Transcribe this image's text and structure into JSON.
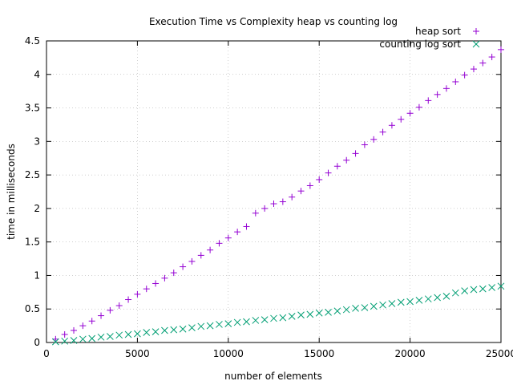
{
  "chart_data": {
    "type": "scatter",
    "title": "Execution Time vs Complexity heap vs counting log",
    "xlabel": "number of elements",
    "ylabel": "time in milliseconds",
    "xlim": [
      0,
      25000
    ],
    "ylim": [
      0,
      4.5
    ],
    "x_ticks": [
      0,
      5000,
      10000,
      15000,
      20000,
      25000
    ],
    "y_ticks": [
      0,
      0.5,
      1,
      1.5,
      2,
      2.5,
      3,
      3.5,
      4,
      4.5
    ],
    "grid": true,
    "legend_position": "top-right",
    "x": [
      500,
      1000,
      1500,
      2000,
      2500,
      3000,
      3500,
      4000,
      4500,
      5000,
      5500,
      6000,
      6500,
      7000,
      7500,
      8000,
      8500,
      9000,
      9500,
      10000,
      10500,
      11000,
      11500,
      12000,
      12500,
      13000,
      13500,
      14000,
      14500,
      15000,
      15500,
      16000,
      16500,
      17000,
      17500,
      18000,
      18500,
      19000,
      19500,
      20000,
      20500,
      21000,
      21500,
      22000,
      22500,
      23000,
      23500,
      24000,
      24500,
      25000
    ],
    "series": [
      {
        "name": "heap sort",
        "marker": "plus",
        "color": "#9400d3",
        "values": [
          0.05,
          0.12,
          0.18,
          0.25,
          0.32,
          0.4,
          0.48,
          0.55,
          0.64,
          0.72,
          0.8,
          0.88,
          0.96,
          1.04,
          1.13,
          1.21,
          1.3,
          1.38,
          1.48,
          1.56,
          1.65,
          1.73,
          1.93,
          2.0,
          2.07,
          2.1,
          2.17,
          2.26,
          2.34,
          2.43,
          2.53,
          2.63,
          2.72,
          2.82,
          2.95,
          3.03,
          3.14,
          3.24,
          3.33,
          3.42,
          3.51,
          3.61,
          3.7,
          3.79,
          3.89,
          3.99,
          4.08,
          4.17,
          4.26,
          4.37
        ]
      },
      {
        "name": "counting log sort",
        "marker": "cross",
        "color": "#009e73",
        "values": [
          0.01,
          0.02,
          0.03,
          0.05,
          0.06,
          0.08,
          0.09,
          0.11,
          0.12,
          0.13,
          0.15,
          0.16,
          0.18,
          0.19,
          0.2,
          0.22,
          0.24,
          0.25,
          0.27,
          0.28,
          0.3,
          0.31,
          0.33,
          0.34,
          0.36,
          0.37,
          0.39,
          0.41,
          0.42,
          0.44,
          0.45,
          0.47,
          0.49,
          0.51,
          0.52,
          0.54,
          0.56,
          0.58,
          0.6,
          0.61,
          0.63,
          0.65,
          0.67,
          0.69,
          0.74,
          0.77,
          0.79,
          0.8,
          0.82,
          0.84
        ]
      }
    ]
  }
}
